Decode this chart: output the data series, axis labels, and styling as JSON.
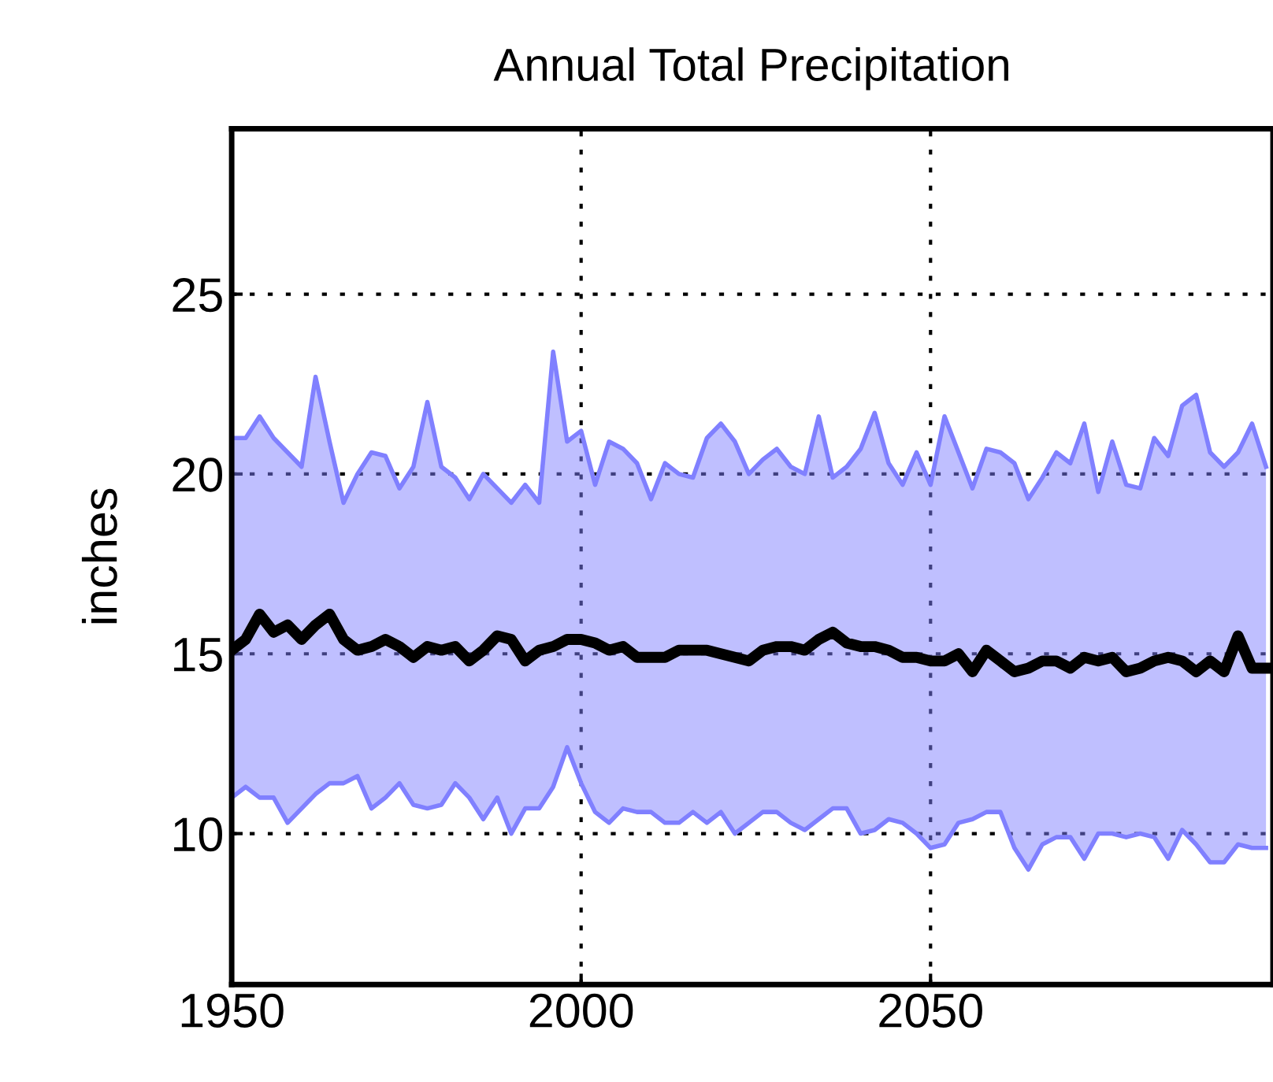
{
  "chart_data": {
    "type": "line",
    "title": "Annual Total Precipitation",
    "ylabel": "inches",
    "x": [
      1950,
      1952,
      1954,
      1956,
      1958,
      1960,
      1962,
      1964,
      1966,
      1968,
      1970,
      1972,
      1974,
      1976,
      1978,
      1980,
      1982,
      1984,
      1986,
      1988,
      1990,
      1992,
      1994,
      1996,
      1998,
      2000,
      2002,
      2004,
      2006,
      2008,
      2010,
      2012,
      2014,
      2016,
      2018,
      2020,
      2022,
      2024,
      2026,
      2028,
      2030,
      2032,
      2034,
      2036,
      2038,
      2040,
      2042,
      2044,
      2046,
      2048,
      2050,
      2052,
      2054,
      2056,
      2058,
      2060,
      2062,
      2064,
      2066,
      2068,
      2070,
      2072,
      2074,
      2076,
      2078,
      2080,
      2082,
      2084,
      2086,
      2088,
      2090,
      2092,
      2094,
      2096,
      2098
    ],
    "series": [
      {
        "color": "#8080ff",
        "values": [
          21.0,
          21.0,
          21.6,
          21.0,
          20.6,
          20.2,
          22.7,
          20.9,
          19.2,
          20.0,
          20.6,
          20.5,
          19.6,
          20.2,
          22.0,
          20.2,
          19.9,
          19.3,
          20.0,
          19.6,
          19.2,
          19.7,
          19.2,
          23.4,
          20.9,
          21.2,
          19.7,
          20.9,
          20.7,
          20.3,
          19.3,
          20.3,
          20.0,
          19.9,
          21.0,
          21.4,
          20.9,
          20.0,
          20.4,
          20.7,
          20.2,
          20.0,
          21.6,
          19.9,
          20.2,
          20.7,
          21.7,
          20.3,
          19.7,
          20.6,
          19.7,
          21.6,
          20.6,
          19.6,
          20.7,
          20.6,
          20.3,
          19.3,
          19.9,
          20.6,
          20.3,
          21.4,
          19.5,
          20.9,
          19.7,
          19.6,
          21.0,
          20.5,
          21.9,
          22.2,
          20.6,
          20.2,
          20.6,
          21.4,
          20.2
        ]
      },
      {
        "color": "#8080ff",
        "values": [
          11.0,
          11.3,
          11.0,
          11.0,
          10.3,
          10.7,
          11.1,
          11.4,
          11.4,
          11.6,
          10.7,
          11.0,
          11.4,
          10.8,
          10.7,
          10.8,
          11.4,
          11.0,
          10.4,
          11.0,
          10.0,
          10.7,
          10.7,
          11.3,
          12.4,
          11.4,
          10.6,
          10.3,
          10.7,
          10.6,
          10.6,
          10.3,
          10.3,
          10.6,
          10.3,
          10.6,
          10.0,
          10.3,
          10.6,
          10.6,
          10.3,
          10.1,
          10.4,
          10.7,
          10.7,
          10.0,
          10.1,
          10.4,
          10.3,
          10.0,
          9.6,
          9.7,
          10.3,
          10.4,
          10.6,
          10.6,
          9.6,
          9.0,
          9.7,
          9.9,
          9.9,
          9.3,
          10.0,
          10.0,
          9.9,
          10.0,
          9.9,
          9.3,
          10.1,
          9.7,
          9.2,
          9.2,
          9.7,
          9.6,
          9.6
        ]
      },
      {
        "color": "#000000",
        "values": [
          15.1,
          15.4,
          16.1,
          15.6,
          15.8,
          15.4,
          15.8,
          16.1,
          15.4,
          15.1,
          15.2,
          15.4,
          15.2,
          14.9,
          15.2,
          15.1,
          15.2,
          14.8,
          15.1,
          15.5,
          15.4,
          14.8,
          15.1,
          15.2,
          15.4,
          15.4,
          15.3,
          15.1,
          15.2,
          14.9,
          14.9,
          14.9,
          15.1,
          15.1,
          15.1,
          15.0,
          14.9,
          14.8,
          15.1,
          15.2,
          15.2,
          15.1,
          15.4,
          15.6,
          15.3,
          15.2,
          15.2,
          15.1,
          14.9,
          14.9,
          14.8,
          14.8,
          15.0,
          14.5,
          15.1,
          14.8,
          14.5,
          14.6,
          14.8,
          14.8,
          14.6,
          14.9,
          14.8,
          14.9,
          14.5,
          14.6,
          14.8,
          14.9,
          14.8,
          14.5,
          14.8,
          14.5,
          15.5,
          14.6,
          14.6
        ],
        "upper": [
          21.0,
          21.0,
          21.6,
          21.0,
          20.6,
          20.2,
          22.7,
          20.9,
          19.2,
          20.0,
          20.6,
          20.5,
          19.6,
          20.2,
          22.0,
          20.2,
          19.9,
          19.3,
          20.0,
          19.6,
          19.2,
          19.7,
          19.2,
          23.4,
          20.9,
          21.2,
          19.7,
          20.9,
          20.7,
          20.3,
          19.3,
          20.3,
          20.0,
          19.9,
          21.0,
          21.4,
          20.9,
          20.0,
          20.4,
          20.7,
          20.2,
          20.0,
          21.6,
          19.9,
          20.2,
          20.7,
          21.7,
          20.3,
          19.7,
          20.6,
          19.7,
          21.6,
          20.6,
          19.6,
          20.7,
          20.6,
          20.3,
          19.3,
          19.9,
          20.6,
          20.3,
          21.4,
          19.5,
          20.9,
          19.7,
          19.6,
          21.0,
          20.5,
          21.9,
          22.2,
          20.6,
          20.2,
          20.6,
          21.4,
          20.2
        ],
        "lower": [
          11.0,
          11.3,
          11.0,
          11.0,
          10.3,
          10.7,
          11.1,
          11.4,
          11.4,
          11.6,
          10.7,
          11.0,
          11.4,
          10.8,
          10.7,
          10.8,
          11.4,
          11.0,
          10.4,
          11.0,
          10.0,
          10.7,
          10.7,
          11.3,
          12.4,
          11.4,
          10.6,
          10.3,
          10.7,
          10.6,
          10.6,
          10.3,
          10.3,
          10.6,
          10.3,
          10.6,
          10.0,
          10.3,
          10.6,
          10.6,
          10.3,
          10.1,
          10.4,
          10.7,
          10.7,
          10.0,
          10.1,
          10.4,
          10.3,
          10.0,
          9.6,
          9.7,
          10.3,
          10.4,
          10.6,
          10.6,
          9.6,
          9.0,
          9.7,
          9.9,
          9.9,
          9.3,
          10.0,
          10.0,
          9.9,
          10.0,
          9.9,
          9.3,
          10.1,
          9.7,
          9.2,
          9.2,
          9.7,
          9.6,
          9.6
        ]
      }
    ],
    "xlim": [
      1950,
      2099
    ],
    "xticks": [
      1950,
      2000,
      2050
    ],
    "ylim": [
      5.8,
      29.6
    ],
    "yticks": [
      10,
      15,
      20,
      25
    ],
    "grid": true,
    "line_style": "solid"
  }
}
